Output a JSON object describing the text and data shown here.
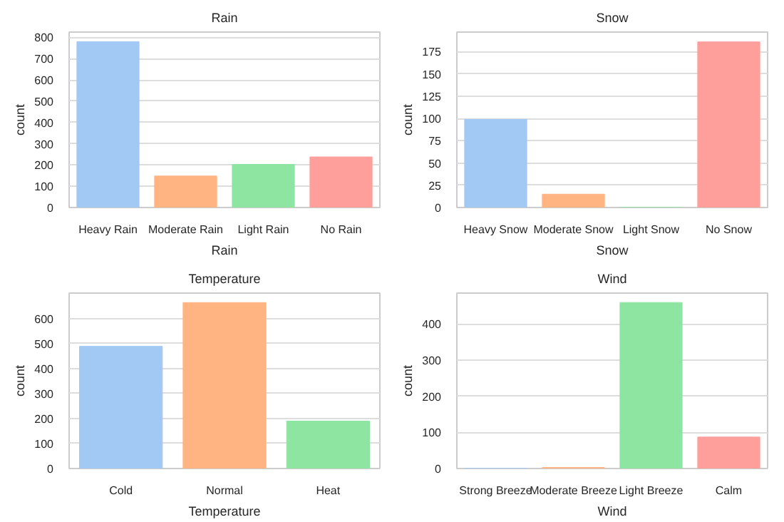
{
  "chart_data": [
    {
      "type": "bar",
      "title": "Rain",
      "xlabel": "Rain",
      "ylabel": "count",
      "categories": [
        "Heavy Rain",
        "Moderate Rain",
        "Light Rain",
        "No Rain"
      ],
      "values": [
        780,
        148,
        203,
        238
      ],
      "colors": [
        "#a1c9f4",
        "#ffb482",
        "#8de5a1",
        "#ff9f9b"
      ],
      "ylim": [
        0,
        825
      ],
      "yticks": [
        0,
        100,
        200,
        300,
        400,
        500,
        600,
        700,
        800
      ],
      "grid": "y"
    },
    {
      "type": "bar",
      "title": "Snow",
      "xlabel": "Snow",
      "ylabel": "count",
      "categories": [
        "Heavy Snow",
        "Moderate Snow",
        "Light Snow",
        "No Snow"
      ],
      "values": [
        99,
        15,
        0,
        186
      ],
      "colors": [
        "#a1c9f4",
        "#ffb482",
        "#8de5a1",
        "#ff9f9b"
      ],
      "ylim": [
        0,
        197
      ],
      "yticks": [
        0,
        25,
        50,
        75,
        100,
        125,
        150,
        175
      ],
      "grid": "y"
    },
    {
      "type": "bar",
      "title": "Temperature",
      "xlabel": "Temperature",
      "ylabel": "count",
      "categories": [
        "Cold",
        "Normal",
        "Heat"
      ],
      "values": [
        489,
        664,
        190
      ],
      "colors": [
        "#a1c9f4",
        "#ffb482",
        "#8de5a1"
      ],
      "ylim": [
        0,
        702
      ],
      "yticks": [
        0,
        100,
        200,
        300,
        400,
        500,
        600
      ],
      "grid": "y"
    },
    {
      "type": "bar",
      "title": "Wind",
      "xlabel": "Wind",
      "ylabel": "count",
      "categories": [
        "Strong Breeze",
        "Moderate Breeze",
        "Light Breeze",
        "Calm"
      ],
      "values": [
        0,
        3,
        459,
        87
      ],
      "colors": [
        "#a1c9f4",
        "#ffb482",
        "#8de5a1",
        "#ff9f9b"
      ],
      "ylim": [
        0,
        485
      ],
      "yticks": [
        0,
        100,
        200,
        300,
        400
      ],
      "grid": "y"
    }
  ]
}
